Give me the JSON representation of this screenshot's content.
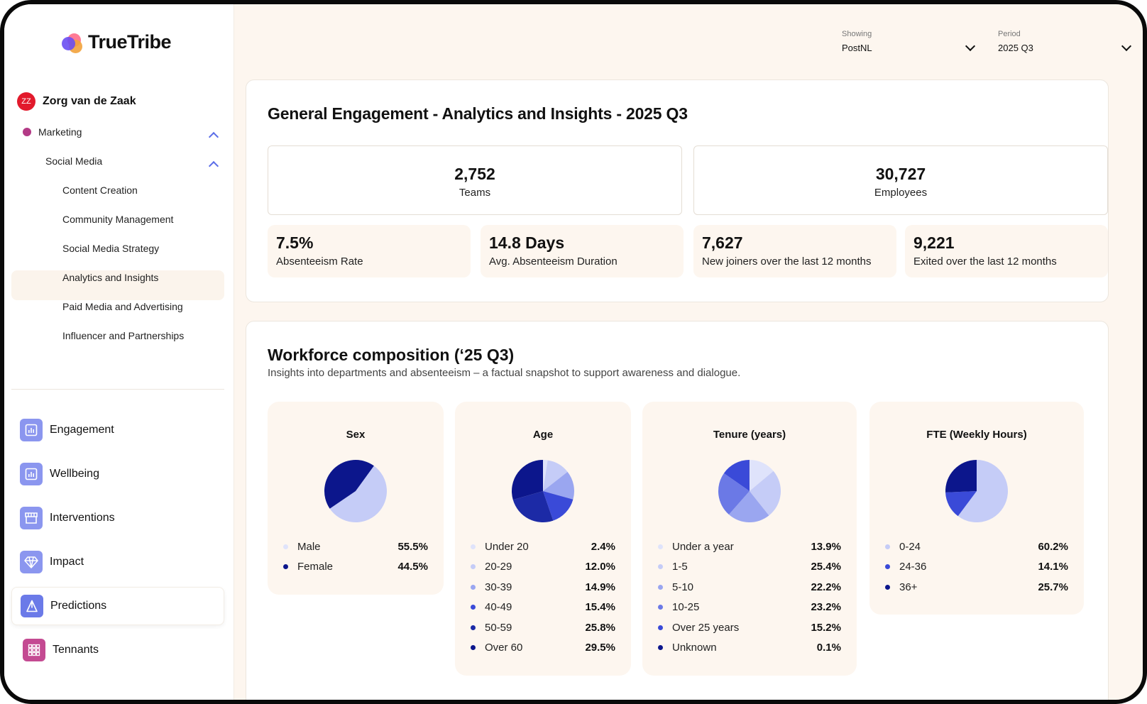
{
  "app": {
    "brand": "TrueTribe"
  },
  "user": {
    "initials": "ZZ",
    "name": "Zorg van de Zaak"
  },
  "tree": {
    "department": "Marketing",
    "subdepartment": "Social Media",
    "items": [
      "Content Creation",
      "Community Management",
      "Social Media Strategy",
      "Analytics and Insights",
      "Paid Media and Advertising",
      "Influencer and Partnerships"
    ],
    "active_item": "Analytics and Insights"
  },
  "nav": {
    "items": [
      "Engagement",
      "Wellbeing",
      "Interventions",
      "Impact",
      "Predictions",
      "Tennants"
    ],
    "active": "Predictions"
  },
  "header": {
    "showing_label": "Showing",
    "showing_value": "PostNL",
    "period_label": "Period",
    "period_value": "2025 Q3"
  },
  "engagement": {
    "title": "General Engagement - Analytics and Insights - 2025 Q3",
    "teams": {
      "value": "2,752",
      "label": "Teams"
    },
    "employees": {
      "value": "30,727",
      "label": "Employees"
    },
    "stats": [
      {
        "value": "7.5%",
        "label": "Absenteeism Rate"
      },
      {
        "value": "14.8 Days",
        "label": "Avg. Absenteeism Duration"
      },
      {
        "value": "7,627",
        "label": "New joiners over the last 12 months"
      },
      {
        "value": "9,221",
        "label": "Exited over the last 12 months"
      }
    ]
  },
  "workforce": {
    "title": "Workforce composition",
    "period": " (‘25 Q3)",
    "subtitle": "Insights into departments and absenteeism – a factual snapshot to support awareness and dialogue."
  },
  "colors": {
    "accent": "#5b6ee8",
    "slice_1": "#dfe3fb",
    "slice_2": "#c5ccf7",
    "slice_3": "#9aa6f0",
    "slice_4": "#6b79e6",
    "slice_5": "#3a4ad8",
    "slice_6": "#0c168c"
  },
  "chart_data": [
    {
      "type": "pie",
      "title": "Sex",
      "labels": [
        "Male",
        "Female"
      ],
      "display": [
        "55.5%",
        "44.5%"
      ],
      "values": [
        55.5,
        44.5
      ],
      "colors": [
        "#c5ccf7",
        "#0c168c"
      ],
      "legend_dots": [
        "#dfe3fb",
        "#0c168c"
      ]
    },
    {
      "type": "pie",
      "title": "Age",
      "labels": [
        "Under 20",
        "20-29",
        "30-39",
        "40-49",
        "50-59",
        "Over 60"
      ],
      "display": [
        "2.4%",
        "12.0%",
        "14.9%",
        "15.4%",
        "25.8%",
        "29.5%"
      ],
      "values": [
        2.4,
        12.0,
        14.9,
        15.4,
        25.8,
        29.5
      ],
      "colors": [
        "#dfe3fb",
        "#c5ccf7",
        "#9aa6f0",
        "#3a4ad8",
        "#1c2aa6",
        "#0c168c"
      ]
    },
    {
      "type": "pie",
      "title": "Tenure (years)",
      "labels": [
        "Under a year",
        "1-5",
        "5-10",
        "10-25",
        "Over 25 years",
        "Unknown"
      ],
      "display": [
        "13.9%",
        "25.4%",
        "22.2%",
        "23.2%",
        "15.2%",
        "0.1%"
      ],
      "values": [
        13.9,
        25.4,
        22.2,
        23.2,
        15.2,
        0.1
      ],
      "colors": [
        "#dfe3fb",
        "#c5ccf7",
        "#9aa6f0",
        "#6b79e6",
        "#3a4ad8",
        "#0c168c"
      ]
    },
    {
      "type": "pie",
      "title": "FTE (Weekly Hours)",
      "labels": [
        "0-24",
        "24-36",
        "36+"
      ],
      "display": [
        "60.2%",
        "14.1%",
        "25.7%"
      ],
      "values": [
        60.2,
        14.1,
        25.7
      ],
      "colors": [
        "#c5ccf7",
        "#3a4ad8",
        "#0c168c"
      ]
    }
  ]
}
